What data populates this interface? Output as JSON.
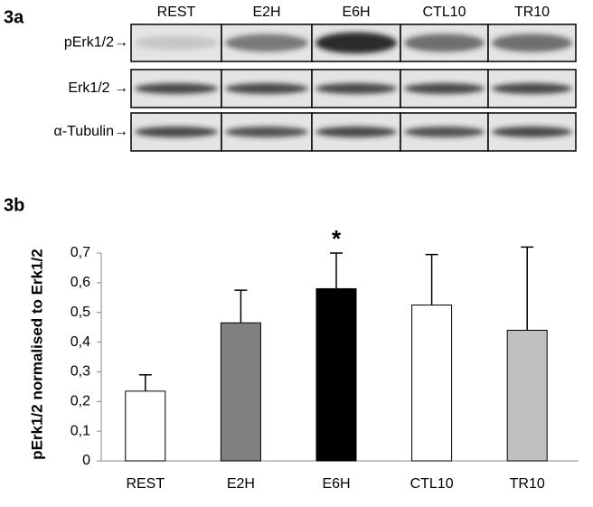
{
  "blot": {
    "label": "3a",
    "lanes": [
      "REST",
      "E2H",
      "E6H",
      "CTL10",
      "TR10"
    ],
    "rows": [
      "pErk1/2→",
      "Erk1/2 →",
      "α-Tubulin→"
    ]
  },
  "chart_data": {
    "type": "bar",
    "label": "3b",
    "y_label": "pErk1/2 normalised to Erk1/2",
    "categories": [
      "REST",
      "E2H",
      "E6H",
      "CTL10",
      "TR10"
    ],
    "values": [
      0.235,
      0.465,
      0.58,
      0.525,
      0.44
    ],
    "errors": [
      0.055,
      0.11,
      0.12,
      0.17,
      0.28
    ],
    "colors": [
      "#ffffff",
      "#808080",
      "#000000",
      "#ffffff",
      "#c0c0c0"
    ],
    "annotations": [
      {
        "text": "*",
        "category": "E6H"
      }
    ],
    "ylim": [
      0,
      0.7
    ],
    "yticks": [
      0,
      {
        "value": 0.1,
        "label": "0,1"
      },
      {
        "value": 0.2,
        "label": "0,2"
      },
      {
        "value": 0.3,
        "label": "0,3"
      },
      {
        "value": 0.4,
        "label": "0,4"
      },
      {
        "value": 0.5,
        "label": "0,5"
      },
      {
        "value": 0.6,
        "label": "0,6"
      },
      {
        "value": 0.7,
        "label": "0,7"
      }
    ]
  }
}
